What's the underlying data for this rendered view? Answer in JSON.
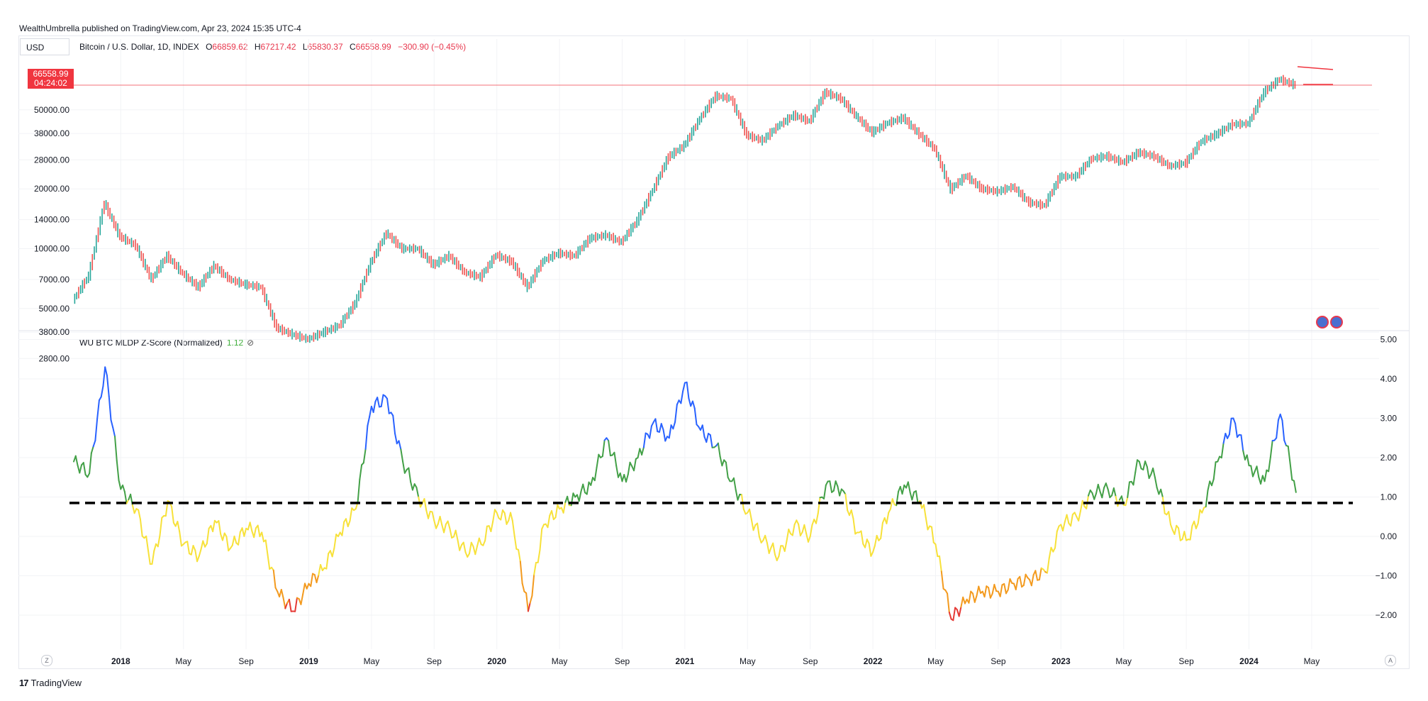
{
  "header": {
    "publisher": "WealthUmbrella published on TradingView.com, Apr 23, 2024 15:35 UTC-4"
  },
  "price_pane": {
    "currency": "USD",
    "symbol": "Bitcoin / U.S. Dollar, 1D, INDEX",
    "ohlc": [
      {
        "key": "O",
        "value": "66859.62"
      },
      {
        "key": "H",
        "value": "67217.42"
      },
      {
        "key": "L",
        "value": "65830.37"
      },
      {
        "key": "C",
        "value": "66558.99"
      }
    ],
    "change": "−300.90 (−0.45%)",
    "last_price": "66558.99",
    "countdown": "04:24:02"
  },
  "indicator_pane": {
    "name": "WU BTC MLDP Z-Score (Normalized)",
    "value": "1.12",
    "icon": "eye-off-icon"
  },
  "footer": {
    "brand": "TradingView",
    "left_button": "Z",
    "right_button": "A"
  },
  "colors": {
    "up": "#26a69a",
    "down": "#ef5350",
    "line_blue": "#2962ff",
    "line_green": "#43a047",
    "line_yellow": "#f7e13a",
    "line_orange": "#f39a1e",
    "line_red": "#e53935",
    "accent_red": "#f0353f"
  },
  "chart_data": [
    {
      "type": "line",
      "scale": "log",
      "y_ticks": [
        "50000.00",
        "38000.00",
        "28000.00",
        "20000.00",
        "14000.00",
        "10000.00",
        "7000.00",
        "5000.00",
        "3800.00",
        "2800.00"
      ],
      "x": [
        "2017-10",
        "2017-11",
        "2017-12",
        "2018-01",
        "2018-02",
        "2018-03",
        "2018-04",
        "2018-05",
        "2018-06",
        "2018-07",
        "2018-08",
        "2018-09",
        "2018-10",
        "2018-11",
        "2018-12",
        "2019-01",
        "2019-02",
        "2019-03",
        "2019-04",
        "2019-05",
        "2019-06",
        "2019-07",
        "2019-08",
        "2019-09",
        "2019-10",
        "2019-11",
        "2019-12",
        "2020-01",
        "2020-02",
        "2020-03",
        "2020-04",
        "2020-05",
        "2020-06",
        "2020-07",
        "2020-08",
        "2020-09",
        "2020-10",
        "2020-11",
        "2020-12",
        "2021-01",
        "2021-02",
        "2021-03",
        "2021-04",
        "2021-05",
        "2021-06",
        "2021-07",
        "2021-08",
        "2021-09",
        "2021-10",
        "2021-11",
        "2021-12",
        "2022-01",
        "2022-02",
        "2022-03",
        "2022-04",
        "2022-05",
        "2022-06",
        "2022-07",
        "2022-08",
        "2022-09",
        "2022-10",
        "2022-11",
        "2022-12",
        "2023-01",
        "2023-02",
        "2023-03",
        "2023-04",
        "2023-05",
        "2023-06",
        "2023-07",
        "2023-08",
        "2023-09",
        "2023-10",
        "2023-11",
        "2023-12",
        "2024-01",
        "2024-02",
        "2024-03",
        "2024-04"
      ],
      "series": [
        {
          "values": [
            5500,
            7300,
            17000,
            11500,
            10400,
            7000,
            9200,
            7500,
            6400,
            8200,
            7000,
            6600,
            6400,
            4000,
            3700,
            3500,
            3800,
            4100,
            5300,
            8500,
            12000,
            10000,
            10000,
            8300,
            9200,
            7600,
            7200,
            9300,
            8600,
            6400,
            8700,
            9500,
            9200,
            11300,
            11700,
            10800,
            13800,
            19700,
            29000,
            33000,
            45000,
            58700,
            57000,
            37300,
            35000,
            41500,
            47000,
            43800,
            61300,
            57000,
            46300,
            38500,
            43000,
            45500,
            37700,
            31800,
            19900,
            23300,
            20000,
            19400,
            20500,
            17100,
            16500,
            23100,
            23100,
            28400,
            29200,
            27200,
            30500,
            29200,
            26000,
            27000,
            34700,
            37700,
            42300,
            42600,
            61200,
            71300,
            66558.99
          ]
        }
      ],
      "annotations": [
        "resistance line",
        "support line"
      ]
    },
    {
      "type": "line",
      "y_ticks": [
        "5.00",
        "4.00",
        "3.00",
        "2.00",
        "1.00",
        "0.00",
        "−1.00",
        "−2.00"
      ],
      "threshold": 0.85,
      "x_labels": [
        "2018",
        "May",
        "Sep",
        "2019",
        "May",
        "Sep",
        "2020",
        "May",
        "Sep",
        "2021",
        "May",
        "Sep",
        "2022",
        "May",
        "Sep",
        "2023",
        "May",
        "Sep",
        "2024",
        "May"
      ],
      "x": [
        "2017-10",
        "2017-11",
        "2017-12",
        "2018-01",
        "2018-02",
        "2018-03",
        "2018-04",
        "2018-05",
        "2018-06",
        "2018-07",
        "2018-08",
        "2018-09",
        "2018-10",
        "2018-11",
        "2018-12",
        "2019-01",
        "2019-02",
        "2019-03",
        "2019-04",
        "2019-05",
        "2019-06",
        "2019-07",
        "2019-08",
        "2019-09",
        "2019-10",
        "2019-11",
        "2019-12",
        "2020-01",
        "2020-02",
        "2020-03",
        "2020-04",
        "2020-05",
        "2020-06",
        "2020-07",
        "2020-08",
        "2020-09",
        "2020-10",
        "2020-11",
        "2020-12",
        "2021-01",
        "2021-02",
        "2021-03",
        "2021-04",
        "2021-05",
        "2021-06",
        "2021-07",
        "2021-08",
        "2021-09",
        "2021-10",
        "2021-11",
        "2021-12",
        "2022-01",
        "2022-02",
        "2022-03",
        "2022-04",
        "2022-05",
        "2022-06",
        "2022-07",
        "2022-08",
        "2022-09",
        "2022-10",
        "2022-11",
        "2022-12",
        "2023-01",
        "2023-02",
        "2023-03",
        "2023-04",
        "2023-05",
        "2023-06",
        "2023-07",
        "2023-08",
        "2023-09",
        "2023-10",
        "2023-11",
        "2023-12",
        "2024-01",
        "2024-02",
        "2024-03",
        "2024-04"
      ],
      "series": [
        {
          "name": "WU BTC MLDP Z-Score (Normalized)",
          "values": [
            1.9,
            1.6,
            4.3,
            1.2,
            0.7,
            -0.7,
            0.9,
            -0.2,
            -0.5,
            0.4,
            -0.3,
            0.2,
            0.1,
            -1.4,
            -1.9,
            -1.2,
            -0.8,
            0.1,
            0.7,
            3.3,
            3.5,
            1.9,
            1.0,
            0.4,
            0.2,
            -0.4,
            -0.2,
            0.6,
            0.4,
            -1.9,
            0.3,
            0.7,
            1.0,
            1.3,
            2.5,
            1.4,
            2.0,
            2.9,
            2.5,
            3.9,
            2.7,
            2.3,
            1.4,
            0.6,
            -0.1,
            -0.5,
            0.3,
            0.0,
            1.3,
            1.2,
            0.1,
            -0.4,
            0.6,
            1.3,
            0.9,
            -0.2,
            -2.1,
            -1.6,
            -1.4,
            -1.4,
            -1.2,
            -1.1,
            -0.9,
            0.3,
            0.5,
            1.1,
            1.2,
            0.8,
            1.9,
            1.5,
            0.3,
            -0.1,
            0.6,
            1.9,
            3.0,
            1.8,
            1.4,
            3.1,
            1.12
          ]
        }
      ]
    }
  ]
}
